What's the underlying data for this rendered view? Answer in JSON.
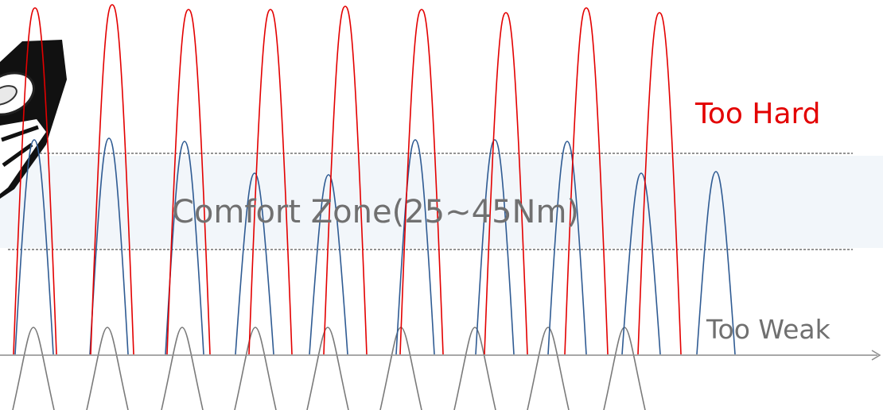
{
  "zones": {
    "too_hard": "Too Hard",
    "comfort": "Comfort Zone(25~45Nm)",
    "too_weak": "Too Weak"
  },
  "colors": {
    "too_hard": "#e30000",
    "comfort_text": "#707070",
    "too_weak_text": "#707070",
    "band_fill": "#f2f6fa",
    "red_curve": "#e30000",
    "blue_curve": "#2f5b93",
    "gray_curve": "#7a7a7a",
    "axis": "#8c8c8c",
    "dash": "#555555"
  },
  "icons": {
    "hand_tool": "wrench-tool-icon"
  }
}
